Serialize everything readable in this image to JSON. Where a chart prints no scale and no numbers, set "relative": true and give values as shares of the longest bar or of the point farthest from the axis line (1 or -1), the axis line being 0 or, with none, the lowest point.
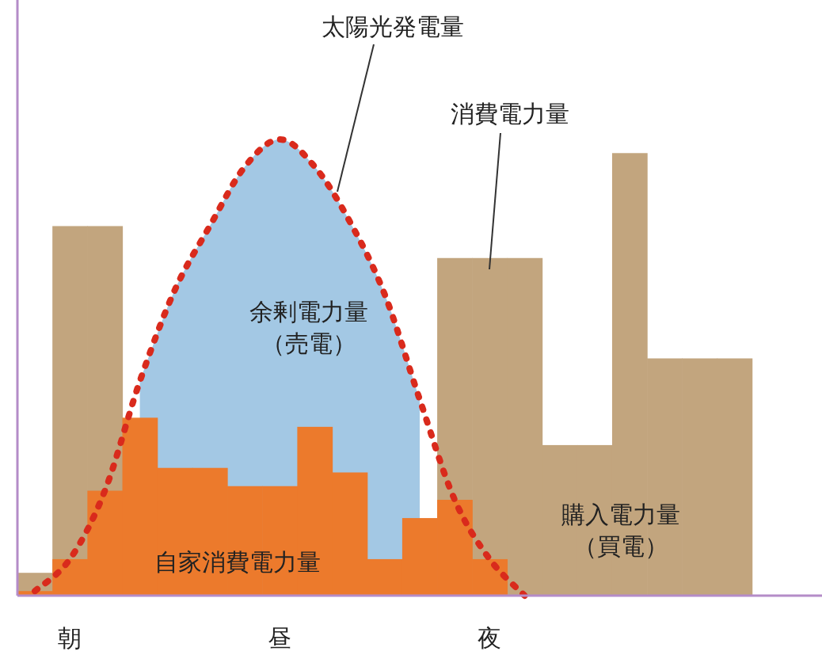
{
  "chart_data": {
    "type": "bar",
    "relative": true,
    "legend": false,
    "categories": [
      null,
      "朝",
      null,
      null,
      null,
      null,
      null,
      "昼",
      null,
      null,
      null,
      null,
      null,
      "夜",
      null,
      null,
      null,
      null,
      null,
      null,
      null,
      null,
      null
    ],
    "series": [
      {
        "name": "余剰電力量（売電）",
        "type": "area",
        "color": "#a3c8e4",
        "values": [
          null,
          null,
          null,
          0.47,
          0.67,
          0.81,
          0.94,
          1,
          0.94,
          0.82,
          0.66,
          0.43,
          null,
          null,
          null,
          null,
          null,
          null,
          null,
          null,
          null,
          null,
          null
        ]
      },
      {
        "name": "消費電力量",
        "type": "bar",
        "color": "#c2a57e",
        "values": [
          0.05,
          0.81,
          0.81,
          null,
          null,
          null,
          null,
          null,
          null,
          null,
          null,
          null,
          0.74,
          0.74,
          0.74,
          0.33,
          0.33,
          0.97,
          0.52,
          0.52,
          0.52,
          null,
          null
        ]
      },
      {
        "name": "自家消費電力量",
        "type": "bar",
        "color": "#ec7a2c",
        "values": [
          0.01,
          0.08,
          0.23,
          0.39,
          0.28,
          0.28,
          0.24,
          0.24,
          0.37,
          0.27,
          0.08,
          0.17,
          0.21,
          0.08,
          0,
          0,
          0,
          0,
          0,
          0,
          0,
          null,
          null
        ]
      },
      {
        "name": "太陽光発電量",
        "type": "line",
        "color": "#d92a1c",
        "line_style": "dotted",
        "values": [
          0.01,
          0.08,
          0.23,
          0.47,
          0.67,
          0.81,
          0.94,
          1,
          0.94,
          0.82,
          0.66,
          0.43,
          0.21,
          0.08,
          0,
          null,
          null,
          null,
          null,
          null,
          null,
          null,
          null
        ]
      }
    ],
    "annotations": [
      "購入電力量（買電）"
    ]
  }
}
